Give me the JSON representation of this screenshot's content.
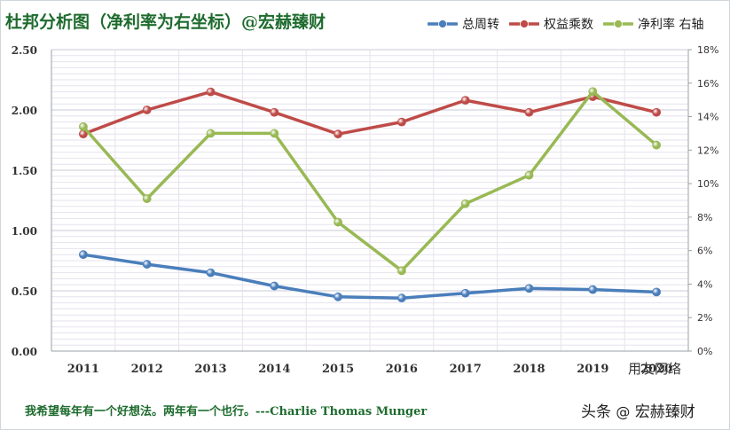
{
  "title": "杜邦分析图（净利率为右坐标）@宏赫臻财",
  "quote": "我希望每年有一个好想法。两年有一个也行。---Charlie Thomas  Munger",
  "watermark_chart": "用友网络",
  "watermark_brand": {
    "prefix": "头条",
    "name": "宏赫臻财"
  },
  "chart_data": {
    "type": "line",
    "categories": [
      "2011",
      "2012",
      "2013",
      "2014",
      "2015",
      "2016",
      "2017",
      "2018",
      "2019",
      "2020"
    ],
    "y_left": {
      "min": 0,
      "max": 2.5,
      "step": 0.5,
      "tick_labels": [
        "0.00",
        "0.50",
        "1.00",
        "1.50",
        "2.00",
        "2.50"
      ]
    },
    "y_right": {
      "min": 0,
      "max": 18,
      "step": 2,
      "tick_labels": [
        "0%",
        "2%",
        "4%",
        "6%",
        "8%",
        "10%",
        "12%",
        "14%",
        "16%",
        "18%"
      ]
    },
    "grid": true,
    "legend_position": "top-right",
    "series": [
      {
        "name": "总周转",
        "axis": "left",
        "color": "#4a7ebb",
        "values": [
          0.8,
          0.72,
          0.65,
          0.54,
          0.45,
          0.44,
          0.48,
          0.52,
          0.51,
          0.49
        ]
      },
      {
        "name": "权益乘数",
        "axis": "left",
        "color": "#be4b48",
        "values": [
          1.8,
          2.0,
          2.15,
          1.98,
          1.8,
          1.9,
          2.08,
          1.98,
          2.11,
          1.98
        ]
      },
      {
        "name": "净利率 右轴",
        "axis": "right",
        "color": "#98b954",
        "values": [
          13.4,
          9.1,
          13.0,
          13.0,
          7.7,
          4.8,
          8.8,
          10.5,
          15.5,
          12.3
        ]
      }
    ]
  }
}
